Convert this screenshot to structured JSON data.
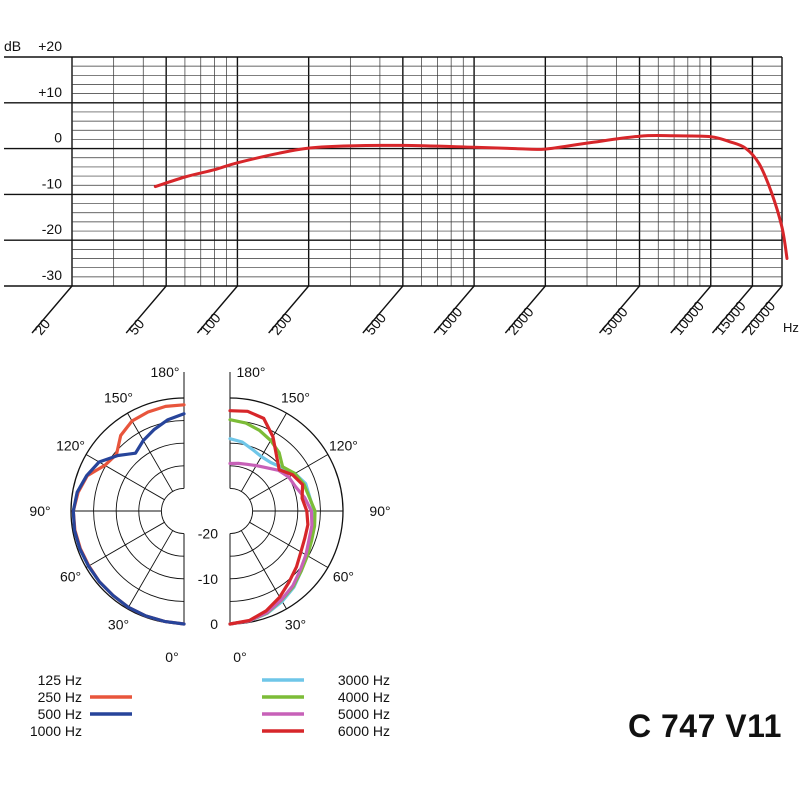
{
  "model_label": "C 747 V11",
  "chart_data": [
    {
      "type": "line",
      "xscale": "log",
      "xlim": [
        20,
        20000
      ],
      "ylim": [
        -30,
        20
      ],
      "y_unit": "dB",
      "x_unit": "Hz",
      "x_tick_labels": [
        "20",
        "50",
        "100",
        "200",
        "500",
        "1000",
        "2000",
        "5000",
        "10000",
        "15000",
        "20000"
      ],
      "y_tick_labels": [
        "+20",
        "+10",
        "0",
        "-10",
        "-20",
        "-30"
      ],
      "grid": true,
      "series": [
        {
          "color": "#d7262a",
          "x": [
            45,
            60,
            80,
            100,
            150,
            200,
            300,
            500,
            1000,
            1500,
            2000,
            3000,
            5000,
            7000,
            10000,
            12000,
            14000,
            16000,
            18000,
            20000,
            21000
          ],
          "y": [
            -8.3,
            -6.2,
            -4.6,
            -3.1,
            -1.0,
            0.1,
            0.6,
            0.7,
            0.3,
            0.0,
            -0.1,
            1.2,
            2.7,
            2.8,
            2.6,
            1.5,
            0.1,
            -3.3,
            -9.4,
            -17.2,
            -24.0
          ]
        }
      ]
    },
    {
      "type": "polar",
      "angle_labels": [
        "180°",
        "150°",
        "120°",
        "90°",
        "60°",
        "30°",
        "0°"
      ],
      "r_tick_labels": [
        "-20",
        "-10",
        "0"
      ],
      "r_range_db": [
        -25,
        0
      ],
      "angle_unit": "degrees",
      "legend": [
        {
          "name": "125 Hz",
          "color": ""
        },
        {
          "name": "250 Hz",
          "color": "#e8553c"
        },
        {
          "name": "500 Hz",
          "color": "#27449a"
        },
        {
          "name": "1000 Hz",
          "color": ""
        },
        {
          "name": "3000 Hz",
          "color": "#6fc6e8"
        },
        {
          "name": "4000 Hz",
          "color": "#7cbc37"
        },
        {
          "name": "5000 Hz",
          "color": "#c761b8"
        },
        {
          "name": "6000 Hz",
          "color": "#d7262a"
        }
      ],
      "series": [
        {
          "name": "250 Hz",
          "side": "left",
          "angles": [
            0,
            10,
            20,
            30,
            40,
            50,
            60,
            70,
            80,
            90,
            100,
            110,
            120,
            130,
            140,
            150,
            160,
            170,
            180
          ],
          "db": [
            0,
            -0.2,
            -0.3,
            -0.4,
            -0.6,
            -0.6,
            -0.7,
            -0.6,
            -0.5,
            -0.5,
            -1.2,
            -2.2,
            -4.8,
            -5.5,
            -3.2,
            -2.0,
            -1.7,
            -1.5,
            -1.5
          ]
        },
        {
          "name": "500 Hz",
          "side": "left",
          "angles": [
            0,
            10,
            20,
            30,
            40,
            50,
            60,
            70,
            80,
            90,
            100,
            110,
            120,
            130,
            140,
            150,
            160,
            170,
            180
          ],
          "db": [
            0,
            -0.2,
            -0.3,
            -0.4,
            -0.6,
            -0.6,
            -0.6,
            -0.5,
            -0.4,
            -0.5,
            -1.0,
            -2.1,
            -3.3,
            -5.9,
            -8.3,
            -7.0,
            -5.8,
            -4.5,
            -3.5
          ]
        },
        {
          "name": "3000 Hz",
          "side": "right",
          "angles": [
            0,
            10,
            20,
            30,
            40,
            50,
            60,
            70,
            80,
            90,
            100,
            110,
            120,
            130,
            140,
            150,
            160,
            170,
            180
          ],
          "db": [
            0,
            -0.3,
            -0.9,
            -1.9,
            -3.0,
            -4.4,
            -5.4,
            -5.9,
            -6.1,
            -6.4,
            -7.1,
            -7.2,
            -8.4,
            -10.0,
            -11.0,
            -11.1,
            -10.5,
            -9.5,
            -9.0
          ]
        },
        {
          "name": "4000 Hz",
          "side": "right",
          "angles": [
            0,
            10,
            20,
            30,
            40,
            50,
            60,
            70,
            80,
            90,
            100,
            110,
            120,
            130,
            140,
            150,
            160,
            170,
            180
          ],
          "db": [
            0,
            -0.3,
            -1.0,
            -2.2,
            -3.2,
            -4.4,
            -5.2,
            -5.8,
            -6.0,
            -6.2,
            -7.2,
            -7.6,
            -8.4,
            -9.8,
            -8.1,
            -7.0,
            -6.0,
            -5.2,
            -4.8
          ]
        },
        {
          "name": "5000 Hz",
          "side": "right",
          "angles": [
            0,
            10,
            20,
            30,
            40,
            50,
            60,
            70,
            80,
            90,
            100,
            110,
            120,
            130,
            140,
            150,
            160,
            170,
            180
          ],
          "db": [
            0,
            -0.3,
            -1.1,
            -2.3,
            -3.4,
            -4.7,
            -5.6,
            -6.4,
            -6.6,
            -7.0,
            -8.2,
            -9.5,
            -10.0,
            -11.0,
            -12.5,
            -13.4,
            -14.0,
            -14.3,
            -14.5
          ]
        },
        {
          "name": "6000 Hz",
          "side": "right",
          "angles": [
            0,
            10,
            20,
            30,
            40,
            50,
            60,
            70,
            80,
            90,
            100,
            110,
            120,
            130,
            140,
            150,
            160,
            170,
            180
          ],
          "db": [
            0,
            -0.4,
            -1.5,
            -3.0,
            -4.6,
            -5.8,
            -6.9,
            -7.4,
            -7.5,
            -8.0,
            -8.8,
            -7.9,
            -9.0,
            -10.8,
            -9.0,
            -6.0,
            -3.2,
            -2.6,
            -2.8
          ]
        }
      ]
    }
  ]
}
